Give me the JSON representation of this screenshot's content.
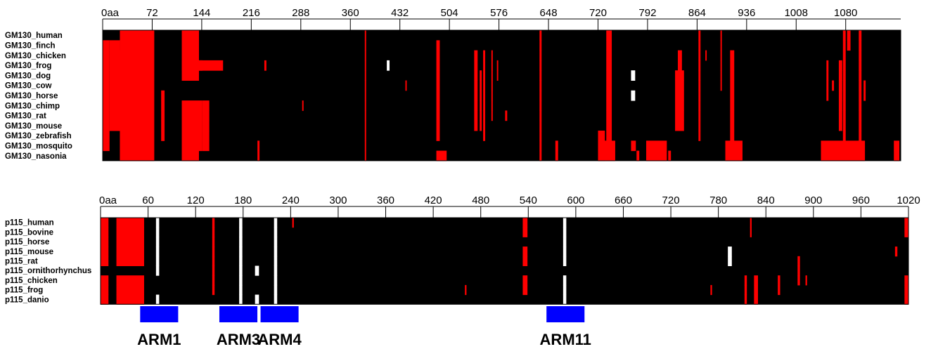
{
  "colors": {
    "background": "#000000",
    "gap": "#ff0000",
    "insertion": "#ffffff",
    "domain": "#0000ff"
  },
  "panels": [
    {
      "id": "gm130",
      "length": 1160,
      "ticks": [
        {
          "pos": 0,
          "label": "0aa"
        },
        {
          "pos": 72,
          "label": "72"
        },
        {
          "pos": 144,
          "label": "144"
        },
        {
          "pos": 216,
          "label": "216"
        },
        {
          "pos": 288,
          "label": "288"
        },
        {
          "pos": 360,
          "label": "360"
        },
        {
          "pos": 432,
          "label": "432"
        },
        {
          "pos": 504,
          "label": "504"
        },
        {
          "pos": 576,
          "label": "576"
        },
        {
          "pos": 648,
          "label": "648"
        },
        {
          "pos": 720,
          "label": "720"
        },
        {
          "pos": 792,
          "label": "792"
        },
        {
          "pos": 864,
          "label": "864"
        },
        {
          "pos": 936,
          "label": "936"
        },
        {
          "pos": 1008,
          "label": "1008"
        },
        {
          "pos": 1080,
          "label": "1080"
        }
      ],
      "rows": [
        "GM130_human",
        "GM130_finch",
        "GM130_chicken",
        "GM130_frog",
        "GM130_dog",
        "GM130_cow",
        "GM130_horse",
        "GM130_chimp",
        "GM130_rat",
        "GM130_mouse",
        "GM130_zebrafish",
        "GM130_mosquito",
        "GM130_nasonia"
      ],
      "gaps": [
        {
          "start": 0,
          "end": 10,
          "rows": [
            1,
            2,
            3,
            4,
            5,
            6,
            7,
            8,
            9,
            10,
            11
          ]
        },
        {
          "start": 10,
          "end": 25,
          "rows": [
            1
          ]
        },
        {
          "start": 10,
          "end": 75,
          "rows": [
            2,
            3,
            4,
            5,
            6,
            7,
            8,
            9
          ]
        },
        {
          "start": 25,
          "end": 75,
          "rows": [
            0,
            1,
            10,
            11,
            12
          ]
        },
        {
          "start": 62,
          "end": 67,
          "rows": [
            2
          ]
        },
        {
          "start": 85,
          "end": 90,
          "rows": [
            6,
            7,
            8,
            9,
            10
          ]
        },
        {
          "start": 115,
          "end": 140,
          "rows": [
            0,
            1,
            2,
            3,
            4,
            12
          ]
        },
        {
          "start": 115,
          "end": 145,
          "rows": [
            3,
            7,
            8,
            9,
            10,
            11
          ]
        },
        {
          "start": 115,
          "end": 175,
          "rows": [
            3
          ]
        },
        {
          "start": 145,
          "end": 155,
          "rows": [
            7,
            8,
            9,
            10,
            11
          ]
        },
        {
          "start": 225,
          "end": 228,
          "rows": [
            11,
            12
          ]
        },
        {
          "start": 235,
          "end": 238,
          "rows": [
            3
          ]
        },
        {
          "start": 290,
          "end": 292,
          "rows": [
            7
          ]
        },
        {
          "start": 381,
          "end": 383,
          "rows": [
            0,
            1,
            2,
            3,
            4,
            5,
            6,
            7,
            8,
            9,
            10,
            11,
            12
          ]
        },
        {
          "start": 440,
          "end": 442,
          "rows": [
            5
          ]
        },
        {
          "start": 485,
          "end": 490,
          "rows": [
            1,
            2,
            3,
            4,
            5,
            6,
            7,
            8,
            9,
            10
          ]
        },
        {
          "start": 485,
          "end": 500,
          "rows": [
            12
          ]
        },
        {
          "start": 540,
          "end": 545,
          "rows": [
            2,
            3,
            4,
            5,
            6,
            7,
            8,
            9
          ]
        },
        {
          "start": 548,
          "end": 551,
          "rows": [
            4,
            5,
            6,
            7,
            8,
            9
          ]
        },
        {
          "start": 553,
          "end": 556,
          "rows": [
            2,
            3,
            4,
            5,
            6,
            7,
            8,
            9,
            10
          ]
        },
        {
          "start": 565,
          "end": 567,
          "rows": [
            2,
            3,
            4,
            5,
            6,
            7,
            8
          ]
        },
        {
          "start": 573,
          "end": 575,
          "rows": [
            3,
            4
          ]
        },
        {
          "start": 585,
          "end": 588,
          "rows": [
            8
          ]
        },
        {
          "start": 635,
          "end": 638,
          "rows": [
            0,
            1,
            2,
            3,
            4,
            5,
            6,
            7,
            8,
            9,
            10,
            11,
            12
          ]
        },
        {
          "start": 658,
          "end": 662,
          "rows": [
            11,
            12
          ]
        },
        {
          "start": 720,
          "end": 730,
          "rows": [
            10,
            11,
            12
          ]
        },
        {
          "start": 720,
          "end": 745,
          "rows": [
            11,
            12
          ]
        },
        {
          "start": 732,
          "end": 740,
          "rows": [
            0,
            1,
            2,
            3,
            4,
            5,
            6,
            7,
            8,
            9,
            10
          ]
        },
        {
          "start": 768,
          "end": 775,
          "rows": [
            11
          ]
        },
        {
          "start": 776,
          "end": 780,
          "rows": [
            12
          ]
        },
        {
          "start": 790,
          "end": 820,
          "rows": [
            11,
            12
          ]
        },
        {
          "start": 822,
          "end": 826,
          "rows": [
            12
          ]
        },
        {
          "start": 832,
          "end": 845,
          "rows": [
            4,
            5,
            6,
            7,
            8,
            9
          ]
        },
        {
          "start": 836,
          "end": 842,
          "rows": [
            2,
            3
          ]
        },
        {
          "start": 866,
          "end": 869,
          "rows": [
            0,
            1,
            2,
            3,
            4,
            5,
            6,
            7,
            8,
            9,
            10
          ]
        },
        {
          "start": 876,
          "end": 878,
          "rows": [
            2
          ]
        },
        {
          "start": 898,
          "end": 900,
          "rows": [
            0,
            1,
            2,
            3,
            4,
            5
          ]
        },
        {
          "start": 905,
          "end": 930,
          "rows": [
            11,
            12
          ]
        },
        {
          "start": 912,
          "end": 918,
          "rows": [
            2,
            3,
            4,
            5,
            6,
            7,
            8,
            9,
            10
          ]
        },
        {
          "start": 1044,
          "end": 1108,
          "rows": [
            11,
            12
          ]
        },
        {
          "start": 1052,
          "end": 1055,
          "rows": [
            3,
            4,
            5,
            6
          ]
        },
        {
          "start": 1060,
          "end": 1063,
          "rows": [
            5
          ]
        },
        {
          "start": 1070,
          "end": 1075,
          "rows": [
            3,
            4,
            5,
            6,
            7,
            8,
            9
          ]
        },
        {
          "start": 1076,
          "end": 1080,
          "rows": [
            0,
            1,
            2,
            3,
            4,
            5,
            6,
            7,
            8,
            9,
            10
          ]
        },
        {
          "start": 1082,
          "end": 1087,
          "rows": [
            0,
            1
          ]
        },
        {
          "start": 1099,
          "end": 1103,
          "rows": [
            0,
            1,
            2,
            3,
            4,
            5,
            6,
            7,
            8,
            9,
            10
          ]
        },
        {
          "start": 1106,
          "end": 1109,
          "rows": [
            5,
            6
          ]
        },
        {
          "start": 1150,
          "end": 1158,
          "rows": [
            11,
            12
          ]
        }
      ],
      "insertions": [
        {
          "start": 413,
          "end": 417,
          "rows": [
            3
          ]
        },
        {
          "start": 768,
          "end": 774,
          "rows": [
            4
          ]
        },
        {
          "start": 768,
          "end": 774,
          "rows": [
            6
          ]
        }
      ],
      "domains": []
    },
    {
      "id": "p115",
      "length": 1020,
      "ticks": [
        {
          "pos": 0,
          "label": "0aa"
        },
        {
          "pos": 60,
          "label": "60"
        },
        {
          "pos": 120,
          "label": "120"
        },
        {
          "pos": 180,
          "label": "180"
        },
        {
          "pos": 240,
          "label": "240"
        },
        {
          "pos": 300,
          "label": "300"
        },
        {
          "pos": 360,
          "label": "360"
        },
        {
          "pos": 420,
          "label": "420"
        },
        {
          "pos": 480,
          "label": "480"
        },
        {
          "pos": 540,
          "label": "540"
        },
        {
          "pos": 600,
          "label": "600"
        },
        {
          "pos": 660,
          "label": "660"
        },
        {
          "pos": 720,
          "label": "720"
        },
        {
          "pos": 780,
          "label": "780"
        },
        {
          "pos": 840,
          "label": "840"
        },
        {
          "pos": 900,
          "label": "900"
        },
        {
          "pos": 960,
          "label": "960"
        },
        {
          "pos": 1020,
          "label": "1020"
        }
      ],
      "rows": [
        "p115_human",
        "p115_bovine",
        "p115_horse",
        "p115_mouse",
        "p115_rat",
        "p115_ornithorhynchus",
        "p115_chicken",
        "p115_frog",
        "p115_danio"
      ],
      "gaps": [
        {
          "start": 0,
          "end": 10,
          "rows": [
            0,
            1,
            2,
            3,
            4,
            6,
            7,
            8
          ]
        },
        {
          "start": 20,
          "end": 55,
          "rows": [
            0,
            1,
            2,
            3,
            4,
            6,
            7,
            8
          ]
        },
        {
          "start": 141,
          "end": 144,
          "rows": [
            0,
            1,
            2,
            3,
            4,
            5,
            6,
            7
          ]
        },
        {
          "start": 242,
          "end": 244,
          "rows": [
            0
          ]
        },
        {
          "start": 460,
          "end": 462,
          "rows": [
            7
          ]
        },
        {
          "start": 533,
          "end": 539,
          "rows": [
            0,
            1,
            3,
            4,
            6,
            7
          ]
        },
        {
          "start": 770,
          "end": 772,
          "rows": [
            7
          ]
        },
        {
          "start": 813,
          "end": 816,
          "rows": [
            6,
            7,
            8
          ]
        },
        {
          "start": 820,
          "end": 822,
          "rows": [
            0,
            1
          ]
        },
        {
          "start": 825,
          "end": 830,
          "rows": [
            6,
            7,
            8
          ]
        },
        {
          "start": 855,
          "end": 858,
          "rows": [
            6,
            7
          ]
        },
        {
          "start": 880,
          "end": 883,
          "rows": [
            4,
            5,
            6
          ]
        },
        {
          "start": 890,
          "end": 892,
          "rows": [
            6
          ]
        },
        {
          "start": 1015,
          "end": 1020,
          "rows": [
            0,
            1,
            6,
            7,
            8
          ]
        },
        {
          "start": 1003,
          "end": 1006,
          "rows": [
            3
          ]
        }
      ],
      "insertions": [
        {
          "start": 70,
          "end": 74,
          "rows": [
            0,
            1,
            2,
            3,
            4,
            5
          ]
        },
        {
          "start": 70,
          "end": 74,
          "rows": [
            8
          ]
        },
        {
          "start": 175,
          "end": 179,
          "rows": [
            0,
            1,
            2,
            3,
            4,
            5,
            6,
            7,
            8
          ]
        },
        {
          "start": 195,
          "end": 200,
          "rows": [
            5
          ]
        },
        {
          "start": 195,
          "end": 200,
          "rows": [
            8
          ]
        },
        {
          "start": 219,
          "end": 223,
          "rows": [
            0,
            1,
            2,
            3,
            4,
            5,
            6,
            7,
            8
          ]
        },
        {
          "start": 584,
          "end": 588,
          "rows": [
            0,
            1,
            2,
            3,
            4
          ]
        },
        {
          "start": 584,
          "end": 588,
          "rows": [
            6,
            7,
            8
          ]
        },
        {
          "start": 792,
          "end": 797,
          "rows": [
            3,
            4
          ]
        }
      ],
      "domains": [
        {
          "label": "ARM1",
          "start": 50,
          "end": 98
        },
        {
          "label": "ARM3",
          "start": 150,
          "end": 198
        },
        {
          "label": "ARM4",
          "start": 202,
          "end": 250
        },
        {
          "label": "ARM11",
          "start": 563,
          "end": 611
        }
      ]
    }
  ]
}
